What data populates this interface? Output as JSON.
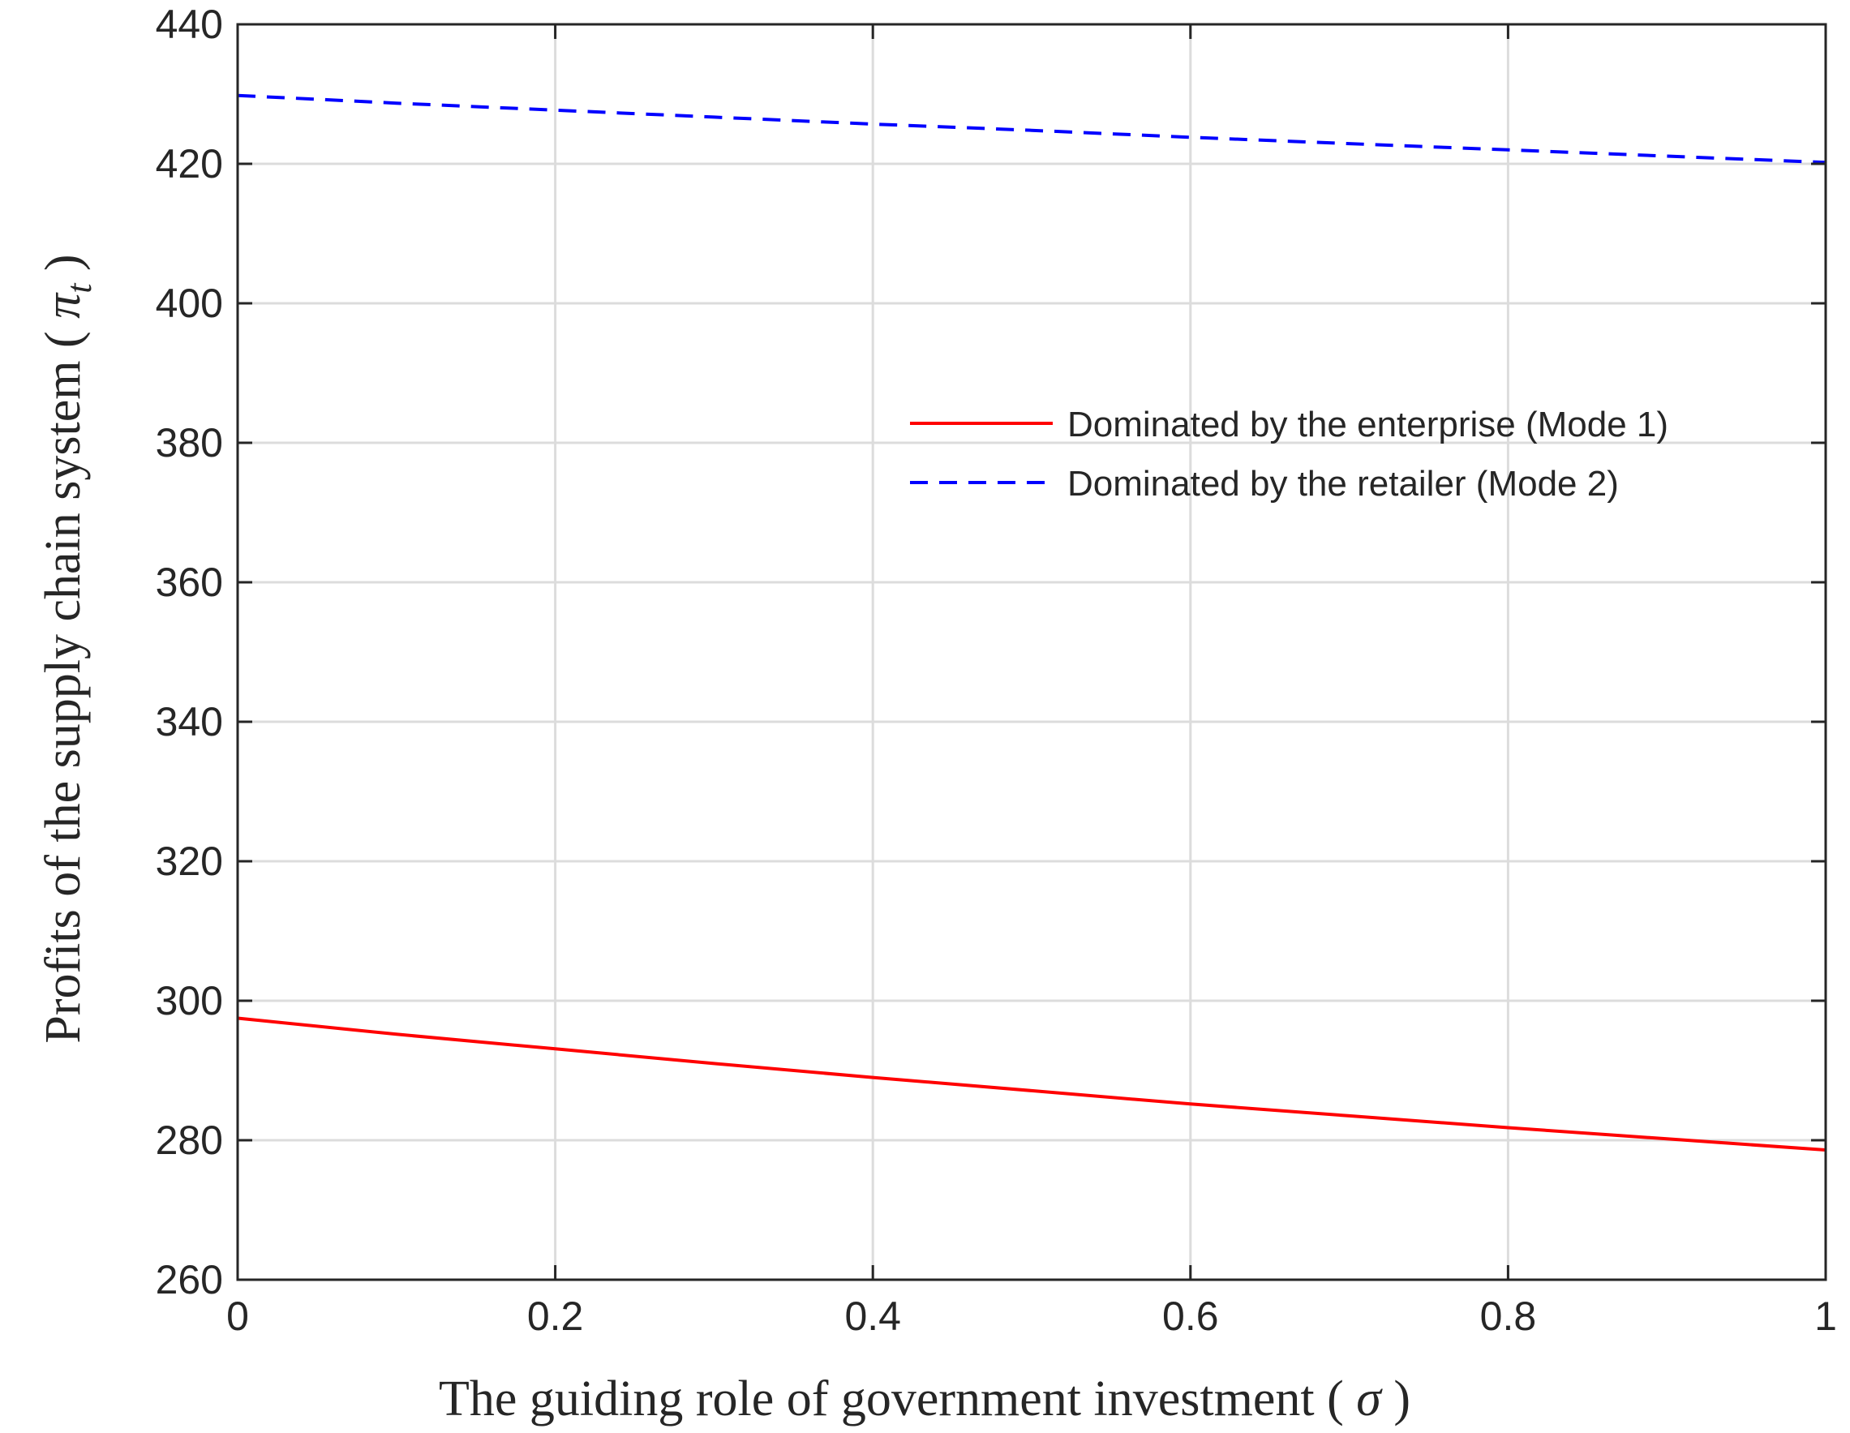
{
  "chart_data": {
    "type": "line",
    "xlabel": "The guiding role of government investment (σ)",
    "xlabel_main": "The guiding role of government investment",
    "xlabel_symbol": "σ",
    "ylabel": "Profits of the supply chain system (π_t)",
    "ylabel_main": "Profits of the supply chain system",
    "ylabel_symbol": "π",
    "ylabel_subscript": "t",
    "xlim": [
      0,
      1
    ],
    "ylim": [
      260,
      440
    ],
    "xticks": [
      "0",
      "0.2",
      "0.4",
      "0.6",
      "0.8",
      "1"
    ],
    "yticks": [
      "260",
      "280",
      "300",
      "320",
      "340",
      "360",
      "380",
      "400",
      "420",
      "440"
    ],
    "grid": true,
    "legend_position": "right",
    "series": [
      {
        "name": "Dominated by the enterprise (Mode 1)",
        "color": "#ff0000",
        "style": "solid",
        "x": [
          0,
          0.1,
          0.2,
          0.3,
          0.4,
          0.5,
          0.6,
          0.7,
          0.8,
          0.9,
          1.0
        ],
        "y": [
          297.5,
          295.2,
          293.1,
          291.0,
          289.0,
          287.1,
          285.2,
          283.5,
          281.8,
          280.2,
          278.6
        ]
      },
      {
        "name": "Dominated by the retailer (Mode 2)",
        "color": "#0000ff",
        "style": "dashed",
        "x": [
          0,
          0.1,
          0.2,
          0.3,
          0.4,
          0.5,
          0.6,
          0.7,
          0.8,
          0.9,
          1.0
        ],
        "y": [
          429.8,
          428.7,
          427.7,
          426.7,
          425.7,
          424.8,
          423.8,
          422.9,
          422.0,
          421.1,
          420.2
        ]
      }
    ]
  }
}
